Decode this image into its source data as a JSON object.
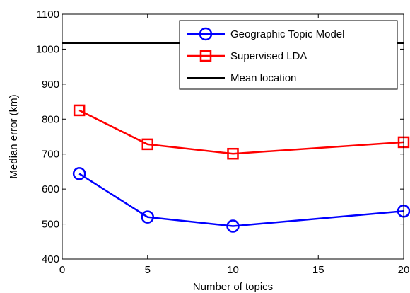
{
  "chart_data": {
    "type": "line",
    "xlabel": "Number of topics",
    "ylabel": "Median error (km)",
    "xlim": [
      0,
      20
    ],
    "ylim": [
      400,
      1100
    ],
    "xticks": [
      0,
      5,
      10,
      15,
      20
    ],
    "yticks": [
      400,
      500,
      600,
      700,
      800,
      900,
      1000,
      1100
    ],
    "grid": false,
    "legend_position": "top-right",
    "series": [
      {
        "name": "Geographic Topic Model",
        "x": [
          1,
          5,
          10,
          20
        ],
        "y": [
          644,
          520,
          494,
          537
        ],
        "color": "#0000ff",
        "marker": "circle"
      },
      {
        "name": "Supervised LDA",
        "x": [
          1,
          5,
          10,
          20
        ],
        "y": [
          825,
          728,
          701,
          734
        ],
        "color": "#ff0000",
        "marker": "square"
      },
      {
        "name": "Mean location",
        "x": [
          0,
          20
        ],
        "y": [
          1018,
          1018
        ],
        "color": "#000000",
        "marker": "none"
      }
    ]
  }
}
